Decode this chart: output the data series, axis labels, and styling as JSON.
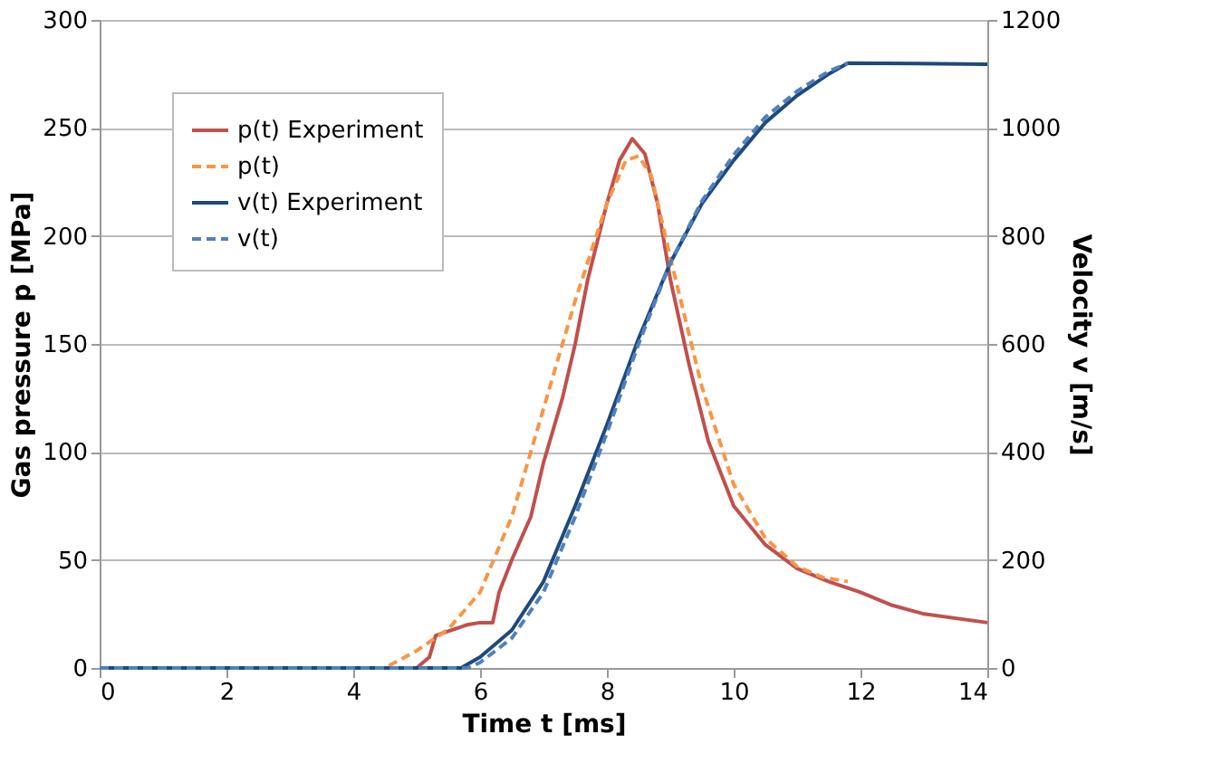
{
  "chart_data": {
    "type": "line",
    "xlabel": "Time t [ms]",
    "ylabel": "Gas pressure p [MPa]",
    "y2label": "Velocity v [m/s]",
    "xlim": [
      0,
      14
    ],
    "xticks": [
      0,
      2,
      4,
      6,
      8,
      10,
      12,
      14
    ],
    "ylim": [
      0,
      300
    ],
    "yticks": [
      0,
      50,
      100,
      150,
      200,
      250,
      300
    ],
    "y2lim": [
      0,
      1200
    ],
    "y2ticks": [
      0,
      200,
      400,
      600,
      800,
      1000,
      1200
    ],
    "grid": "y",
    "legend": "top left",
    "marker": "none",
    "series": [
      {
        "name": "p(t) Experiment",
        "color": "#c0504d",
        "line_style": "solid",
        "x": [
          0,
          5.0,
          5.2,
          5.3,
          5.5,
          5.8,
          6.0,
          6.2,
          6.3,
          6.5,
          6.8,
          7.0,
          7.3,
          7.5,
          7.7,
          8.0,
          8.2,
          8.4,
          8.6,
          8.8,
          9.0,
          9.3,
          9.6,
          10.0,
          10.5,
          11.0,
          11.5,
          12.0,
          12.5,
          13.0,
          14.0
        ],
        "values": [
          0,
          0,
          5,
          15,
          17,
          20,
          21,
          21,
          35,
          50,
          70,
          95,
          125,
          150,
          180,
          215,
          235,
          245,
          238,
          215,
          180,
          140,
          105,
          75,
          57,
          46,
          40,
          35,
          29,
          25,
          21
        ]
      },
      {
        "name": "p(t)",
        "color": "#f79646",
        "line_style": "dashed",
        "x": [
          0,
          4.5,
          5.0,
          5.5,
          6.0,
          6.5,
          7.0,
          7.5,
          8.0,
          8.3,
          8.5,
          8.7,
          9.0,
          9.5,
          10.0,
          10.5,
          11.0,
          11.4,
          11.8
        ],
        "values": [
          0,
          0,
          8,
          18,
          35,
          70,
          120,
          170,
          215,
          235,
          237,
          228,
          190,
          130,
          85,
          60,
          47,
          42,
          40
        ]
      },
      {
        "name": "v(t) Experiment",
        "color": "#1f497d",
        "line_style": "solid",
        "axis": "y2",
        "x": [
          0,
          5.7,
          6.0,
          6.5,
          7.0,
          7.5,
          8.0,
          8.5,
          9.0,
          9.5,
          10.0,
          10.5,
          11.0,
          11.5,
          11.8,
          14.0
        ],
        "values": [
          0,
          0,
          20,
          70,
          160,
          300,
          450,
          610,
          750,
          860,
          940,
          1010,
          1060,
          1100,
          1120,
          1118
        ]
      },
      {
        "name": "v(t)",
        "color": "#4f81bd",
        "line_style": "dashed",
        "axis": "y2",
        "x": [
          0,
          5.8,
          6.0,
          6.5,
          7.0,
          7.5,
          8.0,
          8.5,
          9.0,
          9.5,
          10.0,
          10.5,
          11.0,
          11.5,
          11.8
        ],
        "values": [
          0,
          0,
          10,
          55,
          140,
          280,
          435,
          600,
          750,
          865,
          950,
          1020,
          1068,
          1105,
          1120
        ]
      }
    ]
  }
}
